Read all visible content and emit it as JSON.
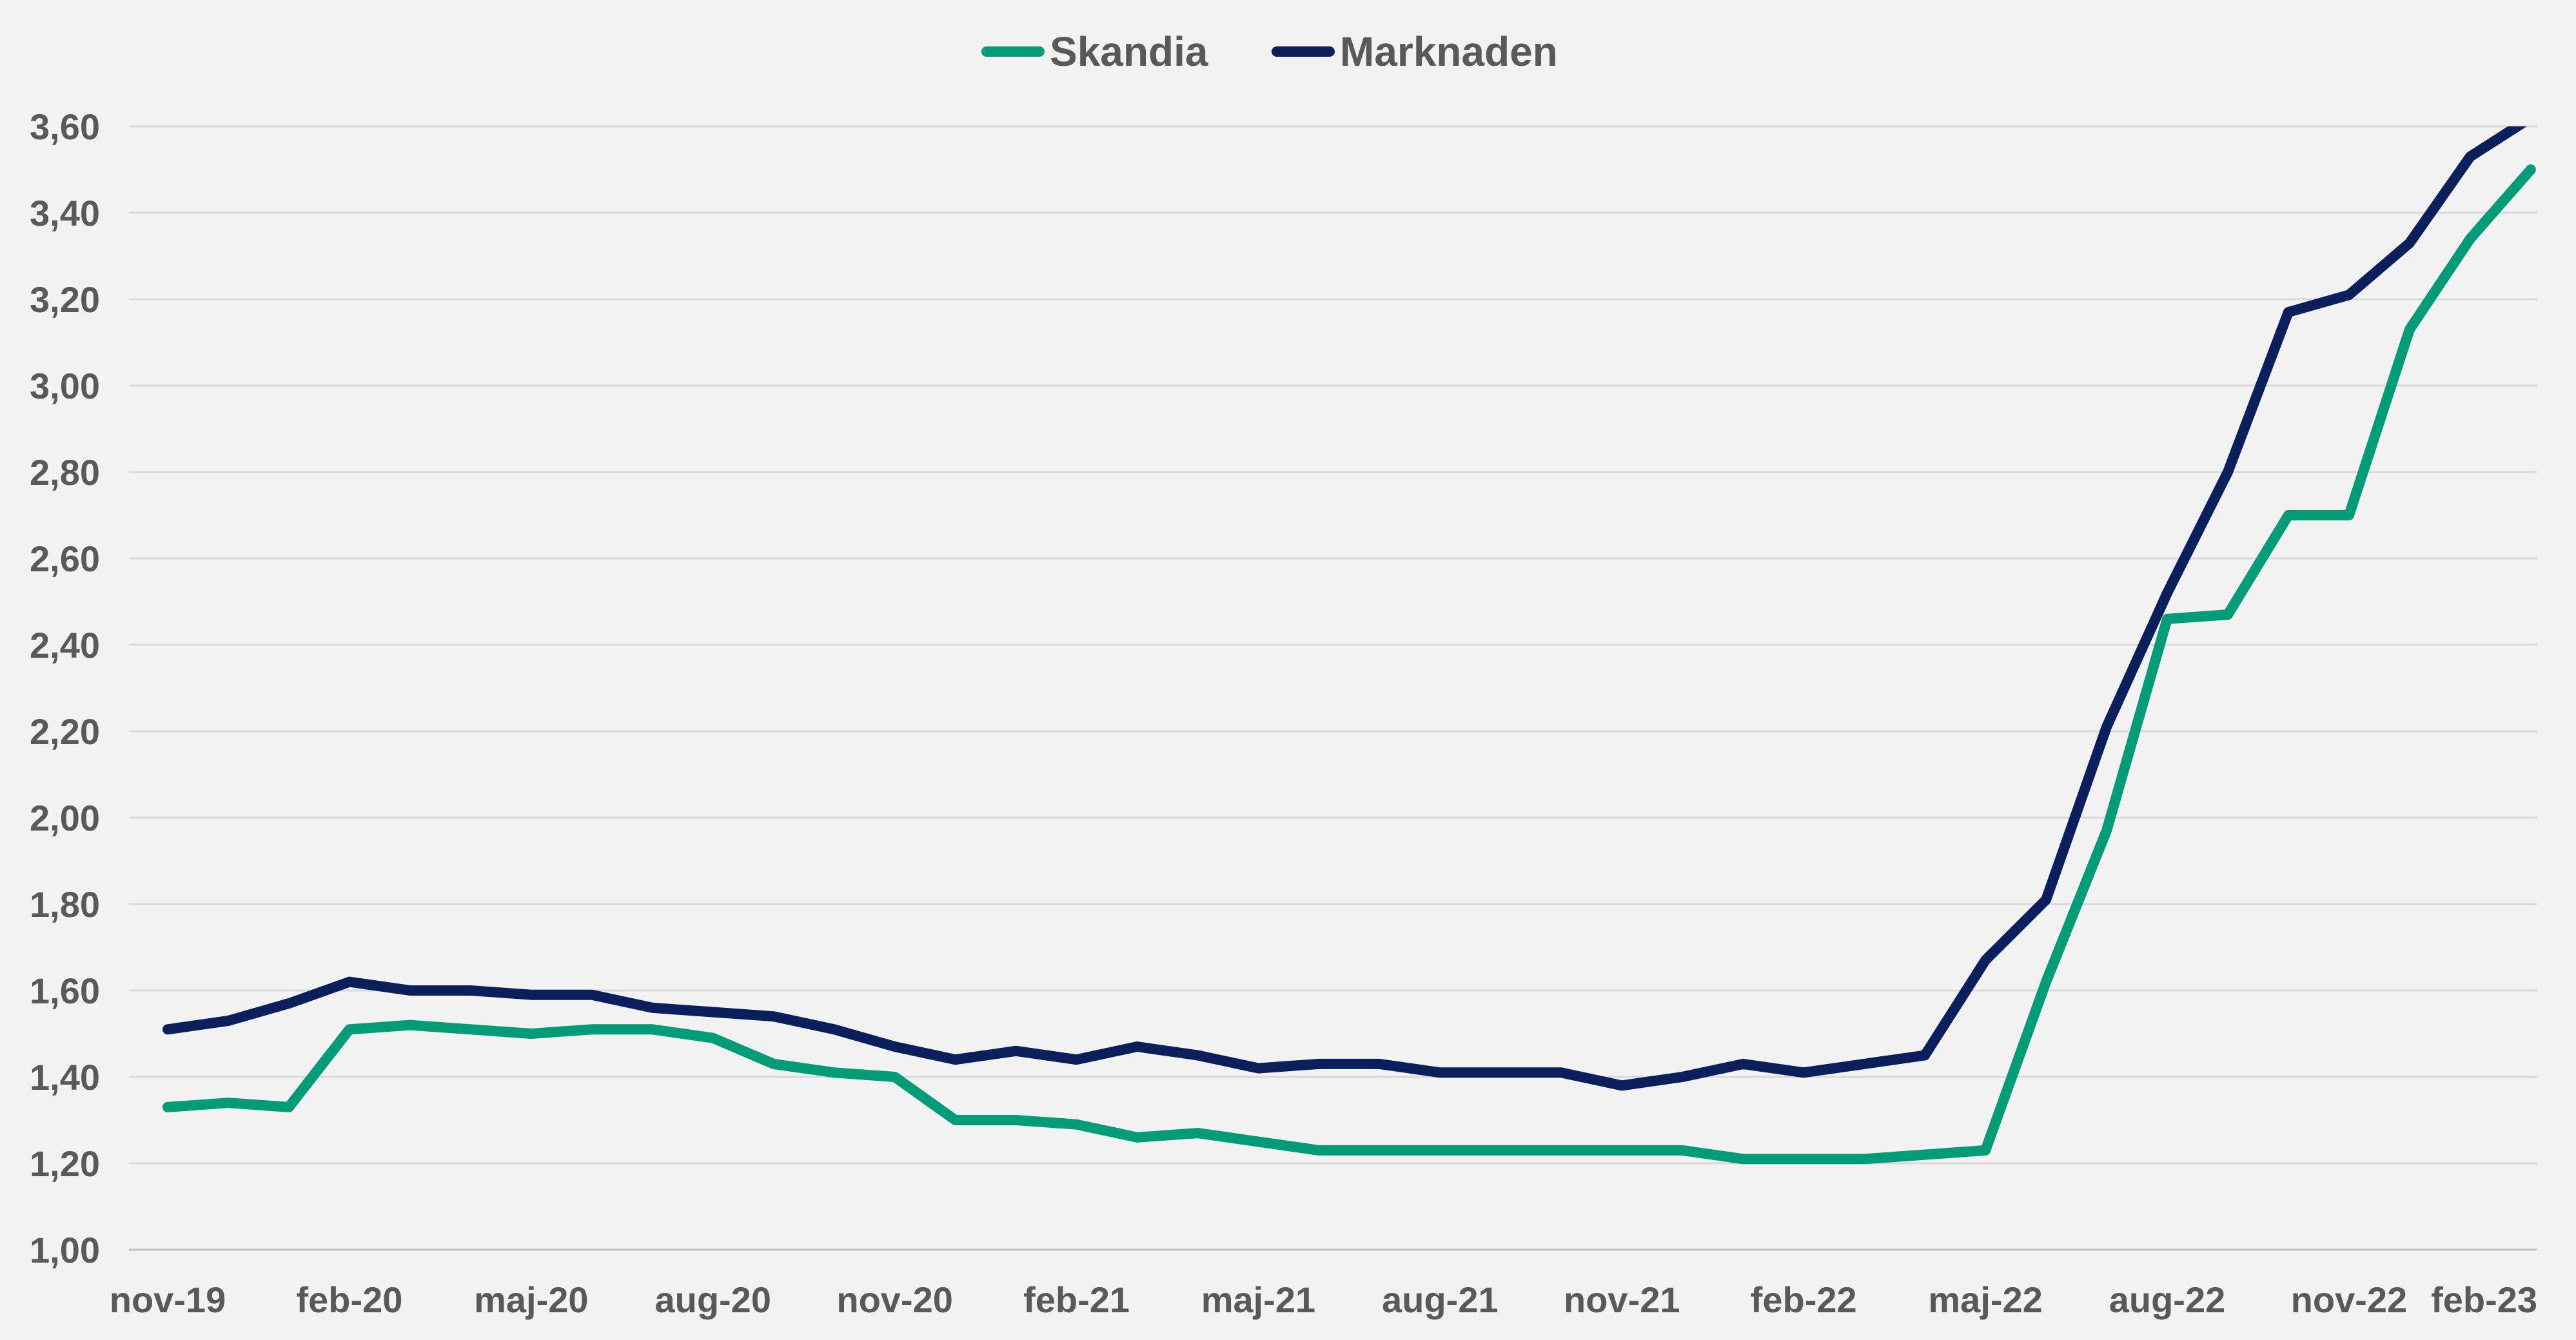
{
  "chart_data": {
    "type": "line",
    "x": [
      "nov-19",
      "dec-19",
      "jan-20",
      "feb-20",
      "mar-20",
      "apr-20",
      "maj-20",
      "jun-20",
      "jul-20",
      "aug-20",
      "sep-20",
      "okt-20",
      "nov-20",
      "dec-20",
      "jan-21",
      "feb-21",
      "mar-21",
      "apr-21",
      "maj-21",
      "jun-21",
      "jul-21",
      "aug-21",
      "sep-21",
      "okt-21",
      "nov-21",
      "dec-21",
      "jan-22",
      "feb-22",
      "mar-22",
      "apr-22",
      "maj-22",
      "jun-22",
      "jul-22",
      "aug-22",
      "sep-22",
      "okt-22",
      "nov-22",
      "dec-22",
      "jan-23",
      "feb-23"
    ],
    "xtick_labels": [
      "nov-19",
      "feb-20",
      "maj-20",
      "aug-20",
      "nov-20",
      "feb-21",
      "maj-21",
      "aug-21",
      "nov-21",
      "feb-22",
      "maj-22",
      "aug-22",
      "nov-22",
      "feb-23"
    ],
    "ylim": [
      1.0,
      3.6
    ],
    "ytick_values": [
      1.0,
      1.2,
      1.4,
      1.6,
      1.8,
      2.0,
      2.2,
      2.4,
      2.6,
      2.8,
      3.0,
      3.2,
      3.4,
      3.6
    ],
    "ytick_labels": [
      "1,00",
      "1,20",
      "1,40",
      "1,60",
      "1,80",
      "2,00",
      "2,20",
      "2,40",
      "2,60",
      "2,80",
      "3,00",
      "3,20",
      "3,40",
      "3,60"
    ],
    "grid": true,
    "legend_position": "top-center",
    "series": [
      {
        "name": "Skandia",
        "color": "#009b77",
        "values": [
          1.33,
          1.34,
          1.33,
          1.51,
          1.52,
          1.51,
          1.5,
          1.51,
          1.51,
          1.49,
          1.43,
          1.41,
          1.4,
          1.3,
          1.3,
          1.29,
          1.26,
          1.27,
          1.25,
          1.23,
          1.23,
          1.23,
          1.23,
          1.23,
          1.23,
          1.23,
          1.21,
          1.21,
          1.21,
          1.22,
          1.23,
          1.62,
          1.97,
          2.46,
          2.47,
          2.7,
          2.7,
          3.13,
          3.34,
          3.5
        ]
      },
      {
        "name": "Marknaden",
        "color": "#0a1f5c",
        "values": [
          1.51,
          1.53,
          1.57,
          1.62,
          1.6,
          1.6,
          1.59,
          1.59,
          1.56,
          1.55,
          1.54,
          1.51,
          1.47,
          1.44,
          1.46,
          1.44,
          1.47,
          1.45,
          1.42,
          1.43,
          1.43,
          1.41,
          1.41,
          1.41,
          1.38,
          1.4,
          1.43,
          1.41,
          1.43,
          1.45,
          1.67,
          1.81,
          2.21,
          2.52,
          2.8,
          3.17,
          3.21,
          3.33,
          3.53,
          3.62
        ]
      }
    ]
  }
}
